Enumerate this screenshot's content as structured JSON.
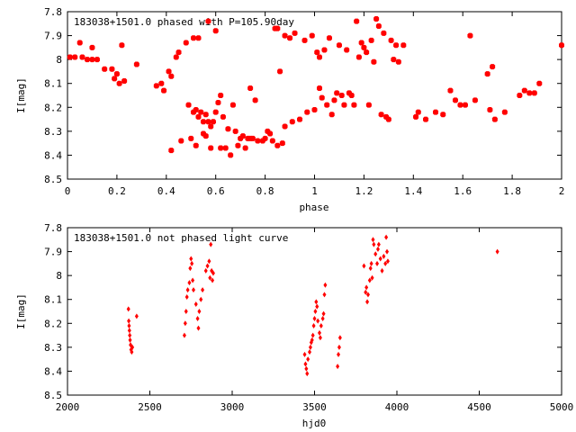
{
  "chart_data": [
    {
      "type": "scatter",
      "title": "183038+1501.0 phased with P=105.90day",
      "xlabel": "phase",
      "ylabel": "I[mag]",
      "xlim": [
        0,
        2
      ],
      "ylim": [
        8.5,
        7.8
      ],
      "y_inverted": true,
      "xticks": [
        "0",
        "0.2",
        "0.4",
        "0.6",
        "0.8",
        "1",
        "1.2",
        "1.4",
        "1.6",
        "1.8",
        "2"
      ],
      "yticks": [
        "7.8",
        "7.9",
        "8",
        "8.1",
        "8.2",
        "8.3",
        "8.4",
        "8.5"
      ],
      "marker_color": "#ff0000",
      "marker": "filled-square",
      "grid": false,
      "series": [
        {
          "points": [
            [
              0.01,
              7.99
            ],
            [
              0.03,
              7.99
            ],
            [
              0.05,
              7.93
            ],
            [
              0.06,
              7.99
            ],
            [
              0.08,
              8.0
            ],
            [
              0.1,
              8.0
            ],
            [
              0.1,
              7.95
            ],
            [
              0.12,
              8.0
            ],
            [
              0.15,
              8.04
            ],
            [
              0.18,
              8.04
            ],
            [
              0.19,
              8.08
            ],
            [
              0.2,
              8.06
            ],
            [
              0.21,
              8.1
            ],
            [
              0.22,
              7.94
            ],
            [
              0.23,
              8.09
            ],
            [
              0.28,
              8.02
            ],
            [
              0.36,
              8.11
            ],
            [
              0.38,
              8.1
            ],
            [
              0.39,
              8.13
            ],
            [
              0.41,
              8.05
            ],
            [
              0.42,
              8.07
            ],
            [
              0.42,
              8.38
            ],
            [
              0.44,
              7.99
            ],
            [
              0.45,
              7.97
            ],
            [
              0.46,
              8.34
            ],
            [
              0.48,
              7.93
            ],
            [
              0.49,
              8.19
            ],
            [
              0.5,
              8.33
            ],
            [
              0.51,
              8.22
            ],
            [
              0.51,
              7.91
            ],
            [
              0.52,
              8.21
            ],
            [
              0.52,
              8.36
            ],
            [
              0.53,
              7.91
            ],
            [
              0.53,
              8.24
            ],
            [
              0.54,
              8.22
            ],
            [
              0.55,
              8.26
            ],
            [
              0.55,
              8.31
            ],
            [
              0.56,
              8.23
            ],
            [
              0.56,
              8.32
            ],
            [
              0.57,
              8.26
            ],
            [
              0.57,
              7.84
            ],
            [
              0.58,
              8.28
            ],
            [
              0.58,
              8.37
            ],
            [
              0.59,
              8.26
            ],
            [
              0.6,
              7.88
            ],
            [
              0.6,
              8.22
            ],
            [
              0.61,
              8.18
            ],
            [
              0.62,
              8.15
            ],
            [
              0.62,
              8.37
            ],
            [
              0.63,
              8.24
            ],
            [
              0.64,
              8.37
            ],
            [
              0.65,
              8.29
            ],
            [
              0.66,
              8.4
            ],
            [
              0.67,
              8.19
            ],
            [
              0.68,
              8.3
            ],
            [
              0.69,
              8.36
            ],
            [
              0.7,
              8.33
            ],
            [
              0.71,
              8.32
            ],
            [
              0.72,
              8.37
            ],
            [
              0.73,
              8.33
            ],
            [
              0.74,
              8.12
            ],
            [
              0.74,
              8.33
            ],
            [
              0.75,
              8.33
            ],
            [
              0.76,
              8.17
            ],
            [
              0.77,
              8.34
            ],
            [
              0.79,
              8.34
            ],
            [
              0.8,
              8.33
            ],
            [
              0.81,
              8.3
            ],
            [
              0.82,
              8.31
            ],
            [
              0.83,
              8.34
            ],
            [
              0.84,
              7.87
            ],
            [
              0.85,
              7.87
            ],
            [
              0.85,
              8.36
            ],
            [
              0.86,
              8.05
            ],
            [
              0.87,
              8.35
            ],
            [
              0.88,
              7.9
            ],
            [
              0.88,
              8.28
            ],
            [
              0.9,
              7.91
            ],
            [
              0.91,
              8.26
            ],
            [
              0.92,
              7.89
            ],
            [
              0.94,
              8.25
            ],
            [
              0.96,
              7.92
            ],
            [
              0.97,
              8.22
            ],
            [
              0.99,
              7.9
            ],
            [
              1.0,
              8.21
            ],
            [
              1.01,
              7.97
            ],
            [
              1.02,
              8.12
            ],
            [
              1.02,
              7.99
            ],
            [
              1.03,
              8.16
            ],
            [
              1.04,
              7.96
            ],
            [
              1.05,
              8.19
            ],
            [
              1.06,
              7.91
            ],
            [
              1.07,
              8.23
            ],
            [
              1.08,
              8.17
            ],
            [
              1.09,
              8.14
            ],
            [
              1.1,
              7.94
            ],
            [
              1.11,
              8.15
            ],
            [
              1.12,
              8.19
            ],
            [
              1.13,
              7.96
            ],
            [
              1.14,
              8.14
            ],
            [
              1.15,
              8.15
            ],
            [
              1.16,
              8.19
            ],
            [
              1.17,
              7.84
            ],
            [
              1.18,
              7.99
            ],
            [
              1.19,
              7.93
            ],
            [
              1.2,
              7.95
            ],
            [
              1.21,
              7.97
            ],
            [
              1.22,
              8.19
            ],
            [
              1.23,
              7.92
            ],
            [
              1.24,
              8.01
            ],
            [
              1.25,
              7.83
            ],
            [
              1.26,
              7.86
            ],
            [
              1.27,
              8.23
            ],
            [
              1.28,
              7.89
            ],
            [
              1.29,
              8.24
            ],
            [
              1.3,
              8.25
            ],
            [
              1.31,
              7.92
            ],
            [
              1.32,
              8.0
            ],
            [
              1.33,
              7.94
            ],
            [
              1.34,
              8.01
            ],
            [
              1.36,
              7.94
            ],
            [
              1.41,
              8.24
            ],
            [
              1.42,
              8.22
            ],
            [
              1.45,
              8.25
            ],
            [
              1.49,
              8.22
            ],
            [
              1.52,
              8.23
            ],
            [
              1.55,
              8.13
            ],
            [
              1.57,
              8.17
            ],
            [
              1.59,
              8.19
            ],
            [
              1.61,
              8.19
            ],
            [
              1.63,
              7.9
            ],
            [
              1.65,
              8.17
            ],
            [
              1.7,
              8.06
            ],
            [
              1.71,
              8.21
            ],
            [
              1.72,
              8.03
            ],
            [
              1.73,
              8.25
            ],
            [
              1.77,
              8.22
            ],
            [
              1.83,
              8.15
            ],
            [
              1.85,
              8.13
            ],
            [
              1.87,
              8.14
            ],
            [
              1.89,
              8.14
            ],
            [
              1.91,
              8.1
            ],
            [
              2.0,
              7.94
            ]
          ]
        }
      ]
    },
    {
      "type": "scatter",
      "title": "183038+1501.0 not phased light curve",
      "xlabel": "hjd0",
      "ylabel": "I[mag]",
      "xlim": [
        2000,
        5000
      ],
      "ylim": [
        8.5,
        7.8
      ],
      "y_inverted": true,
      "xticks": [
        "2000",
        "2500",
        "3000",
        "3500",
        "4000",
        "4500",
        "5000"
      ],
      "yticks": [
        "7.8",
        "7.9",
        "8",
        "8.1",
        "8.2",
        "8.3",
        "8.4",
        "8.5"
      ],
      "marker_color": "#ff0000",
      "marker": "filled-diamond",
      "grid": false,
      "series": [
        {
          "points": [
            [
              2370,
              8.14
            ],
            [
              2372,
              8.19
            ],
            [
              2374,
              8.21
            ],
            [
              2376,
              8.23
            ],
            [
              2378,
              8.25
            ],
            [
              2380,
              8.27
            ],
            [
              2383,
              8.29
            ],
            [
              2386,
              8.31
            ],
            [
              2390,
              8.32
            ],
            [
              2394,
              8.3
            ],
            [
              2420,
              8.17
            ],
            [
              2710,
              8.25
            ],
            [
              2715,
              8.2
            ],
            [
              2720,
              8.15
            ],
            [
              2725,
              8.09
            ],
            [
              2730,
              8.06
            ],
            [
              2740,
              8.03
            ],
            [
              2745,
              7.97
            ],
            [
              2750,
              7.93
            ],
            [
              2755,
              7.95
            ],
            [
              2760,
              8.02
            ],
            [
              2765,
              8.06
            ],
            [
              2780,
              8.12
            ],
            [
              2790,
              8.18
            ],
            [
              2795,
              8.22
            ],
            [
              2800,
              8.15
            ],
            [
              2810,
              8.1
            ],
            [
              2820,
              8.06
            ],
            [
              2840,
              7.98
            ],
            [
              2850,
              7.96
            ],
            [
              2860,
              7.94
            ],
            [
              2865,
              8.01
            ],
            [
              2870,
              7.87
            ],
            [
              2875,
              7.98
            ],
            [
              2880,
              8.02
            ],
            [
              2885,
              7.99
            ],
            [
              3440,
              8.33
            ],
            [
              3445,
              8.37
            ],
            [
              3450,
              8.39
            ],
            [
              3455,
              8.41
            ],
            [
              3460,
              8.35
            ],
            [
              3470,
              8.32
            ],
            [
              3475,
              8.3
            ],
            [
              3480,
              8.28
            ],
            [
              3485,
              8.27
            ],
            [
              3490,
              8.25
            ],
            [
              3495,
              8.21
            ],
            [
              3500,
              8.18
            ],
            [
              3505,
              8.15
            ],
            [
              3510,
              8.11
            ],
            [
              3515,
              8.13
            ],
            [
              3520,
              8.19
            ],
            [
              3530,
              8.24
            ],
            [
              3535,
              8.26
            ],
            [
              3540,
              8.21
            ],
            [
              3550,
              8.18
            ],
            [
              3555,
              8.16
            ],
            [
              3560,
              8.08
            ],
            [
              3565,
              8.04
            ],
            [
              3640,
              8.38
            ],
            [
              3645,
              8.33
            ],
            [
              3650,
              8.3
            ],
            [
              3655,
              8.26
            ],
            [
              3800,
              7.96
            ],
            [
              3810,
              8.07
            ],
            [
              3815,
              8.05
            ],
            [
              3820,
              8.11
            ],
            [
              3825,
              8.08
            ],
            [
              3835,
              8.02
            ],
            [
              3840,
              7.97
            ],
            [
              3845,
              7.95
            ],
            [
              3850,
              8.01
            ],
            [
              3855,
              7.85
            ],
            [
              3860,
              7.87
            ],
            [
              3870,
              7.91
            ],
            [
              3880,
              7.95
            ],
            [
              3885,
              7.89
            ],
            [
              3890,
              7.87
            ],
            [
              3900,
              7.93
            ],
            [
              3910,
              7.98
            ],
            [
              3920,
              7.92
            ],
            [
              3930,
              7.95
            ],
            [
              3935,
              7.84
            ],
            [
              3940,
              7.9
            ],
            [
              3945,
              7.94
            ],
            [
              4610,
              7.9
            ]
          ]
        }
      ]
    }
  ]
}
